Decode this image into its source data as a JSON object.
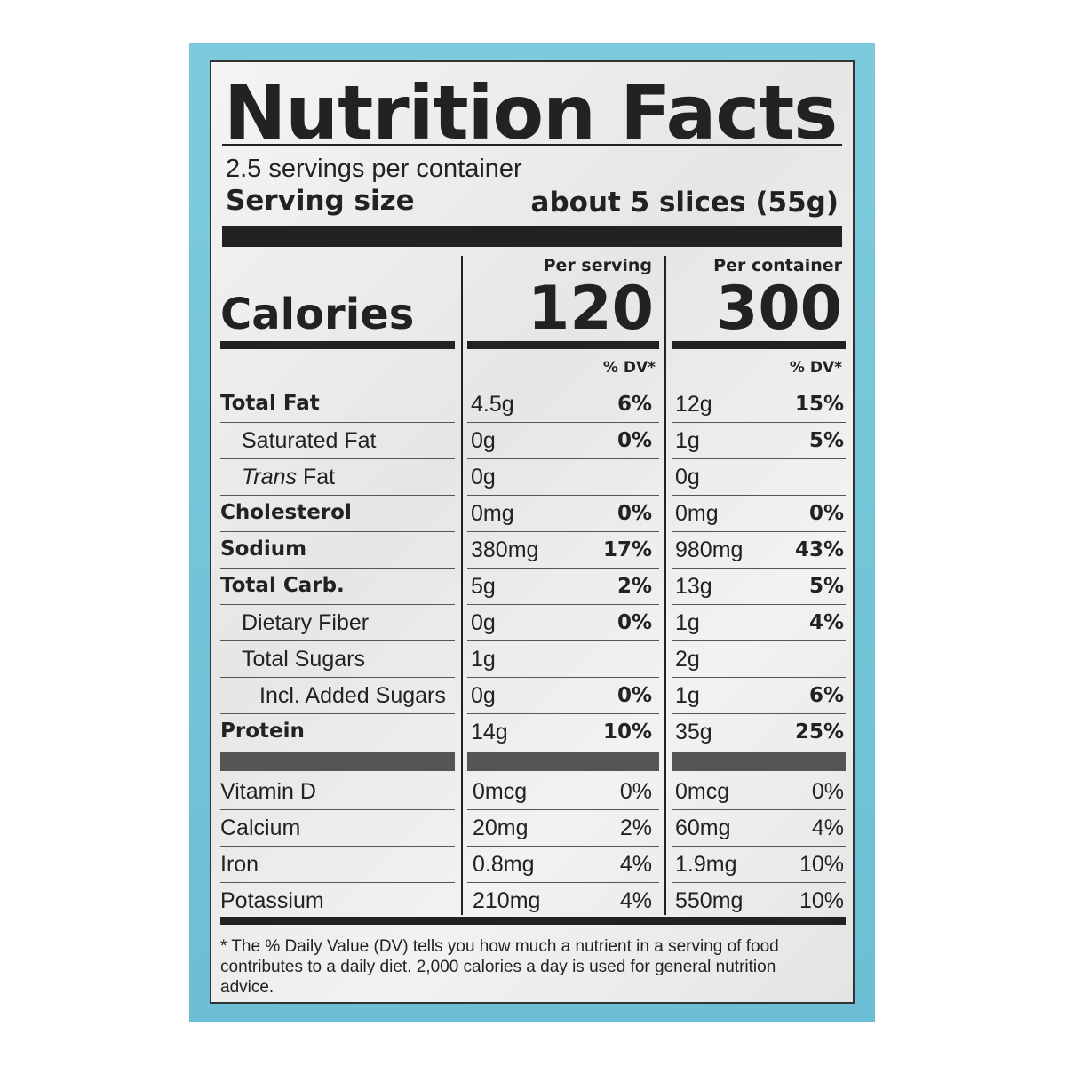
{
  "colors": {
    "package": "#7ccbdd",
    "label": "#eeeeee",
    "ink": "#222222"
  },
  "title": "Nutrition Facts",
  "servings_per_container": "2.5 servings per container",
  "serving_size_label": "Serving size",
  "serving_size_value": "about 5 slices (55g)",
  "calories": {
    "label": "Calories",
    "per_serving_header": "Per serving",
    "per_container_header": "Per container",
    "per_serving": "120",
    "per_container": "300",
    "dv_header": "% DV*"
  },
  "nutrients": [
    {
      "name": "Total Fat",
      "bold": true,
      "indent": 0,
      "s_amt": "4.5g",
      "s_dv": "6%",
      "c_amt": "12g",
      "c_dv": "15%"
    },
    {
      "name": "Saturated Fat",
      "bold": false,
      "indent": 1,
      "s_amt": "0g",
      "s_dv": "0%",
      "c_amt": "1g",
      "c_dv": "5%"
    },
    {
      "name": "Trans",
      "name_suffix": " Fat",
      "bold": false,
      "italic": true,
      "indent": 1,
      "s_amt": "0g",
      "s_dv": "",
      "c_amt": "0g",
      "c_dv": ""
    },
    {
      "name": "Cholesterol",
      "bold": true,
      "indent": 0,
      "s_amt": "0mg",
      "s_dv": "0%",
      "c_amt": "0mg",
      "c_dv": "0%"
    },
    {
      "name": "Sodium",
      "bold": true,
      "indent": 0,
      "s_amt": "380mg",
      "s_dv": "17%",
      "c_amt": "980mg",
      "c_dv": "43%"
    },
    {
      "name": "Total Carb.",
      "bold": true,
      "indent": 0,
      "s_amt": "5g",
      "s_dv": "2%",
      "c_amt": "13g",
      "c_dv": "5%"
    },
    {
      "name": "Dietary Fiber",
      "bold": false,
      "indent": 1,
      "s_amt": "0g",
      "s_dv": "0%",
      "c_amt": "1g",
      "c_dv": "4%"
    },
    {
      "name": "Total Sugars",
      "bold": false,
      "indent": 1,
      "s_amt": "1g",
      "s_dv": "",
      "c_amt": "2g",
      "c_dv": ""
    },
    {
      "name": "Incl. Added Sugars",
      "bold": false,
      "indent": 2,
      "s_amt": "0g",
      "s_dv": "0%",
      "c_amt": "1g",
      "c_dv": "6%"
    },
    {
      "name": "Protein",
      "bold": true,
      "indent": 0,
      "s_amt": "14g",
      "s_dv": "10%",
      "c_amt": "35g",
      "c_dv": "25%"
    }
  ],
  "vitamins": [
    {
      "name": "Vitamin D",
      "s_amt": "0mcg",
      "s_dv": "0%",
      "c_amt": "0mcg",
      "c_dv": "0%"
    },
    {
      "name": "Calcium",
      "s_amt": "20mg",
      "s_dv": "2%",
      "c_amt": "60mg",
      "c_dv": "4%"
    },
    {
      "name": "Iron",
      "s_amt": "0.8mg",
      "s_dv": "4%",
      "c_amt": "1.9mg",
      "c_dv": "10%"
    },
    {
      "name": "Potassium",
      "s_amt": "210mg",
      "s_dv": "4%",
      "c_amt": "550mg",
      "c_dv": "10%"
    }
  ],
  "footnote": "* The % Daily Value (DV) tells you how much a nutrient in a serving of food contributes to a daily diet. 2,000 calories a day is used for general nutrition advice."
}
